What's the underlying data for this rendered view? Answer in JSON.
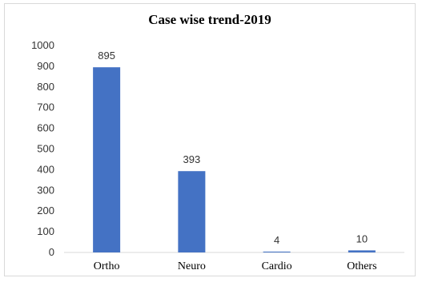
{
  "chart_data": {
    "type": "bar",
    "title": "Case wise trend-2019",
    "categories": [
      "Ortho",
      "Neuro",
      "Cardio",
      "Others"
    ],
    "values": [
      895,
      393,
      4,
      10
    ],
    "data_labels": [
      "895",
      "393",
      "4",
      "10"
    ],
    "ylim": [
      0,
      1000
    ],
    "yticks": [
      "0",
      "100",
      "200",
      "300",
      "400",
      "500",
      "600",
      "700",
      "800",
      "900",
      "1000"
    ],
    "grid": false,
    "legend": "none",
    "bar_color": "#4472C4"
  }
}
